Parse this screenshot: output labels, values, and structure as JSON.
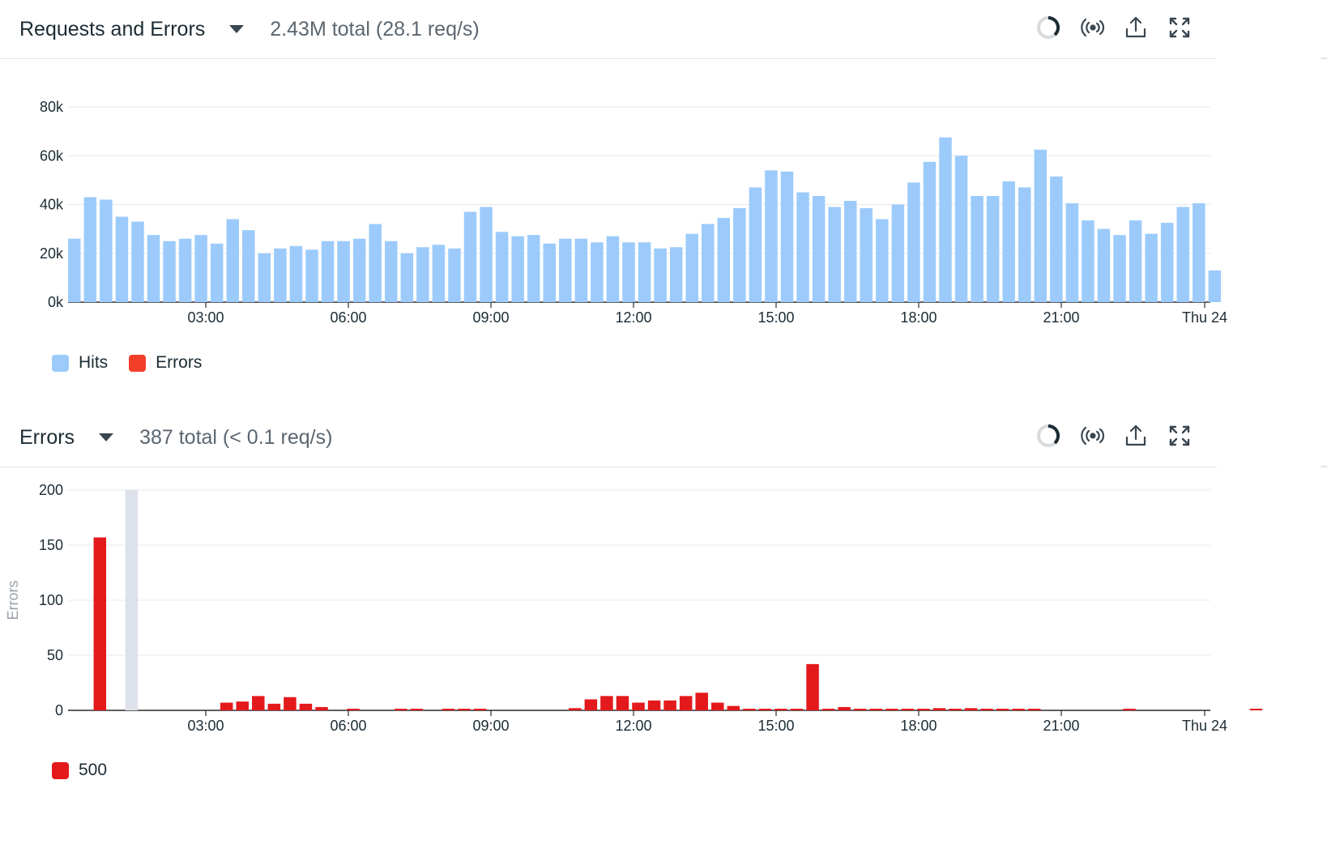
{
  "colors": {
    "hits": "#9ccbfb",
    "errors_legend": "#f23f2a",
    "err500": "#e3191c",
    "highlight": "#dde1ea",
    "grid": "#e6e8eb"
  },
  "panel1": {
    "title": "Requests and Errors",
    "summary": "2.43M total (28.1 req/s)",
    "icons": [
      "loading-ring-icon",
      "live-stream-icon",
      "export-icon",
      "expand-icon"
    ],
    "legend": [
      {
        "label": "Hits"
      },
      {
        "label": "Errors"
      }
    ]
  },
  "panel2": {
    "title": "Errors",
    "summary": "387 total (< 0.1 req/s)",
    "icons": [
      "loading-ring-icon",
      "live-stream-icon",
      "export-icon",
      "expand-icon"
    ],
    "legend": [
      {
        "label": "500"
      }
    ]
  },
  "chart_data": [
    {
      "type": "bar",
      "name_ref": "panel1",
      "series": [
        {
          "name": "Hits",
          "values": [
            26000,
            43000,
            42000,
            35000,
            33000,
            27500,
            25000,
            26000,
            27500,
            24000,
            34000,
            29500,
            20000,
            22000,
            23000,
            21500,
            25000,
            25000,
            26000,
            32000,
            25000,
            20000,
            22500,
            23500,
            22000,
            37000,
            39000,
            28800,
            27000,
            27500,
            24000,
            26000,
            26000,
            24500,
            27000,
            24500,
            24500,
            22000,
            22500,
            28000,
            32000,
            34500,
            38500,
            47000,
            54000,
            53500,
            45000,
            43500,
            39000,
            41500,
            38500,
            34000,
            40000,
            49000,
            57500,
            67500,
            60000,
            43500,
            43500,
            49500,
            47000,
            62500,
            51500,
            40500,
            33500,
            30000,
            27500,
            33500,
            28000,
            32500,
            39000,
            40500,
            13000
          ]
        },
        {
          "name": "Errors",
          "values": []
        }
      ],
      "y_ticks": [
        "0k",
        "20k",
        "40k",
        "60k",
        "80k"
      ],
      "ylim": [
        0,
        80000
      ],
      "x_ticks": [
        "03:00",
        "06:00",
        "09:00",
        "12:00",
        "15:00",
        "18:00",
        "21:00",
        "Thu 24"
      ],
      "grid": true,
      "legend_position": "bottom-left"
    },
    {
      "type": "bar",
      "name_ref": "panel2",
      "series": [
        {
          "name": "500",
          "values": [
            0,
            157,
            0,
            0,
            0,
            0,
            0,
            0,
            0,
            7,
            8,
            13,
            6,
            12,
            6,
            3,
            0,
            1,
            0,
            0,
            1,
            1,
            0,
            1,
            1,
            1,
            0,
            0,
            0,
            0,
            0,
            2,
            10,
            13,
            13,
            7,
            9,
            9,
            13,
            16,
            7,
            4,
            1,
            1,
            1,
            1,
            42,
            1,
            3,
            1,
            1,
            1,
            1,
            1,
            2,
            1,
            2,
            1,
            1,
            1,
            1,
            0,
            0,
            0,
            0,
            0,
            1,
            0,
            0,
            0,
            0,
            0,
            0,
            0,
            1,
            0,
            0,
            0,
            0,
            0
          ]
        }
      ],
      "highlight_index": 3,
      "ylabel": "Errors",
      "y_ticks": [
        "0",
        "50",
        "100",
        "150",
        "200"
      ],
      "ylim": [
        0,
        200
      ],
      "x_ticks": [
        "03:00",
        "06:00",
        "09:00",
        "12:00",
        "15:00",
        "18:00",
        "21:00",
        "Thu 24"
      ],
      "grid": true,
      "legend_position": "bottom-left"
    }
  ]
}
